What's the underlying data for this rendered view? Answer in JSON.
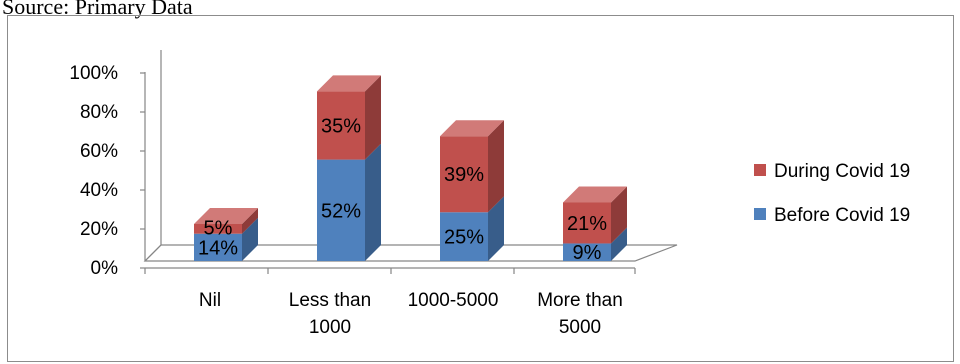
{
  "caption": "Source: Primary Data",
  "chart_data": {
    "type": "bar",
    "stacked": true,
    "three_d": true,
    "categories": [
      [
        "Nil"
      ],
      [
        "Less than",
        "1000"
      ],
      [
        "1000-5000"
      ],
      [
        "More than",
        "5000"
      ]
    ],
    "series": [
      {
        "name": "Before Covid 19",
        "values": [
          14,
          52,
          25,
          9
        ],
        "labels": [
          "14%",
          "52%",
          "25%",
          "9%"
        ],
        "color": "#4f81bd",
        "side": "#385d8a",
        "top": "#7fa1cf"
      },
      {
        "name": "During Covid 19",
        "values": [
          5,
          35,
          39,
          21
        ],
        "labels": [
          "5%",
          "35%",
          "39%",
          "21%"
        ],
        "color": "#c0504d",
        "side": "#8e3b39",
        "top": "#d17a78"
      }
    ],
    "y_ticks": [
      "0%",
      "20%",
      "40%",
      "60%",
      "80%",
      "100%"
    ],
    "ylim": [
      0,
      100
    ],
    "legend_position": "right",
    "grid": false
  }
}
